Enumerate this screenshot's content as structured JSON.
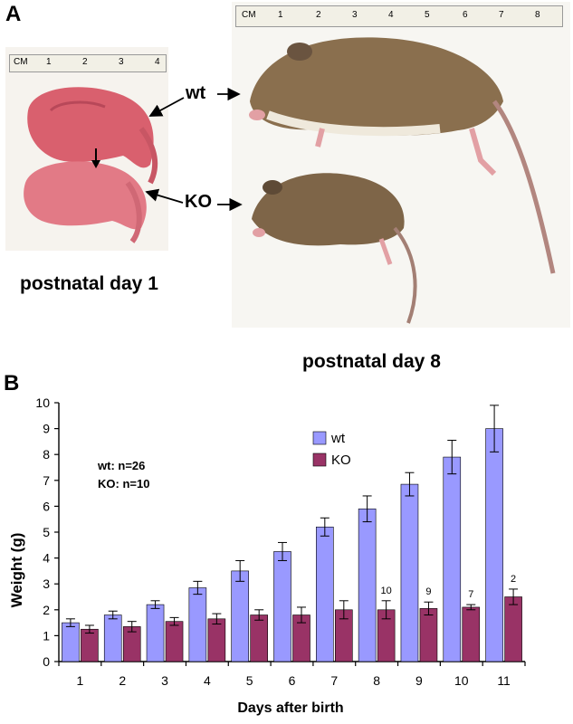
{
  "panel_a": {
    "letter": "A",
    "ruler_unit": "CM",
    "left_ruler_ticks": [
      "1",
      "2",
      "3",
      "4"
    ],
    "right_ruler_ticks": [
      "1",
      "2",
      "3",
      "4",
      "5",
      "6",
      "7",
      "8"
    ],
    "label_wt": "wt",
    "label_ko": "KO",
    "caption_left": "postnatal day 1",
    "caption_right": "postnatal day 8"
  },
  "panel_b": {
    "letter": "B",
    "annotation_line1": "wt: n=26",
    "annotation_line2": "KO: n=10"
  },
  "colors": {
    "wt": "#9999ff",
    "ko": "#993366",
    "pup_pink": "#e07a86",
    "fur_brown": "#8a6f4e"
  },
  "chart_data": {
    "type": "bar",
    "xlabel": "Days after birth",
    "ylabel": "Weight (g)",
    "ylim": [
      0,
      10
    ],
    "yticks": [
      0,
      1,
      2,
      3,
      4,
      5,
      6,
      7,
      8,
      9,
      10
    ],
    "grid": false,
    "legend_position": "top-right",
    "categories": [
      "1",
      "2",
      "3",
      "4",
      "5",
      "6",
      "7",
      "8",
      "9",
      "10",
      "11"
    ],
    "series": [
      {
        "name": "wt",
        "color": "#9999ff",
        "values": [
          1.5,
          1.8,
          2.2,
          2.85,
          3.5,
          4.25,
          5.2,
          5.9,
          6.85,
          7.9,
          9.0
        ],
        "errors": [
          0.15,
          0.15,
          0.15,
          0.25,
          0.4,
          0.35,
          0.35,
          0.5,
          0.45,
          0.65,
          0.9
        ]
      },
      {
        "name": "KO",
        "color": "#993366",
        "values": [
          1.25,
          1.35,
          1.55,
          1.65,
          1.8,
          1.8,
          2.0,
          2.0,
          2.05,
          2.1,
          2.5
        ],
        "errors": [
          0.15,
          0.2,
          0.15,
          0.2,
          0.2,
          0.3,
          0.35,
          0.35,
          0.25,
          0.1,
          0.3
        ]
      }
    ],
    "bar_annotations": [
      {
        "category": "8",
        "series": "KO",
        "text": "10"
      },
      {
        "category": "9",
        "series": "KO",
        "text": "9"
      },
      {
        "category": "10",
        "series": "KO",
        "text": "7"
      },
      {
        "category": "11",
        "series": "KO",
        "text": "2"
      }
    ]
  }
}
